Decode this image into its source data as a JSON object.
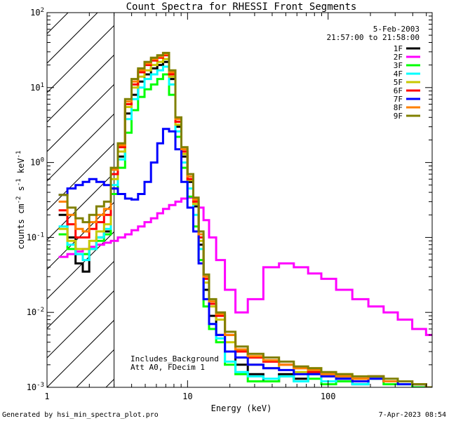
{
  "chart_data": {
    "type": "line",
    "title": "Count Spectra for RHESSI Front Segments",
    "xlabel": "Energy (keV)",
    "ylabel_parts": [
      "counts cm",
      "-2",
      " s",
      "-1",
      " keV",
      "-1"
    ],
    "xscale": "log",
    "yscale": "log",
    "xlim": [
      1,
      550
    ],
    "ylim": [
      0.001,
      100
    ],
    "x_ticks": [
      {
        "value": 1,
        "label": "1"
      },
      {
        "value": 10,
        "label": "10"
      },
      {
        "value": 100,
        "label": "100"
      }
    ],
    "y_ticks": [
      {
        "value": 0.001,
        "mant": "10",
        "exp": "-3"
      },
      {
        "value": 0.01,
        "mant": "10",
        "exp": "-2"
      },
      {
        "value": 0.1,
        "mant": "10",
        "exp": "-1"
      },
      {
        "value": 1,
        "mant": "10",
        "exp": "0"
      },
      {
        "value": 10,
        "mant": "10",
        "exp": "1"
      },
      {
        "value": 100,
        "mant": "10",
        "exp": "2"
      }
    ],
    "hatched_region_xmax": 3,
    "annotations": {
      "date": "5-Feb-2003",
      "time_range": "21:57:00 to 21:58:00",
      "background_note": "Includes_Background",
      "attenuator_note": "Att A0, FDecim 1"
    },
    "series": [
      {
        "name": "1F",
        "color": "#000000",
        "x": [
          1.3,
          1.5,
          1.7,
          1.9,
          2.1,
          2.4,
          2.7,
          3.0,
          3.4,
          3.8,
          4.2,
          4.7,
          5.2,
          5.8,
          6.4,
          7.0,
          7.8,
          8.6,
          9.5,
          10.5,
          11.5,
          12.5,
          13.5,
          15,
          17,
          20,
          24,
          30,
          40,
          50,
          65,
          80,
          100,
          130,
          170,
          220,
          280,
          350,
          450,
          550
        ],
        "y": [
          0.2,
          0.1,
          0.045,
          0.035,
          0.07,
          0.1,
          0.12,
          0.45,
          1.2,
          4.5,
          8,
          12,
          15,
          18,
          20,
          22,
          13,
          3,
          1.2,
          0.55,
          0.26,
          0.08,
          0.02,
          0.009,
          0.005,
          0.003,
          0.002,
          0.0015,
          0.0012,
          0.0015,
          0.0013,
          0.0016,
          0.0012,
          0.0013,
          0.0011,
          0.0014,
          0.0012,
          0.0012,
          0.0011,
          0.001
        ]
      },
      {
        "name": "2F",
        "color": "#ff00ff",
        "x": [
          1.3,
          1.5,
          1.7,
          1.9,
          2.1,
          2.4,
          2.7,
          3.0,
          3.4,
          3.8,
          4.2,
          4.7,
          5.2,
          5.8,
          6.4,
          7.0,
          7.8,
          8.6,
          9.5,
          10.5,
          11.5,
          12.5,
          13.5,
          15,
          17,
          20,
          24,
          30,
          40,
          50,
          65,
          80,
          100,
          130,
          170,
          220,
          280,
          350,
          450,
          550
        ],
        "y": [
          0.055,
          0.06,
          0.065,
          0.07,
          0.075,
          0.08,
          0.085,
          0.09,
          0.1,
          0.11,
          0.125,
          0.14,
          0.16,
          0.18,
          0.21,
          0.24,
          0.27,
          0.3,
          0.33,
          0.34,
          0.31,
          0.25,
          0.17,
          0.1,
          0.05,
          0.02,
          0.01,
          0.015,
          0.04,
          0.045,
          0.04,
          0.033,
          0.028,
          0.02,
          0.015,
          0.012,
          0.01,
          0.008,
          0.006,
          0.005
        ]
      },
      {
        "name": "3F",
        "color": "#00ff00",
        "x": [
          1.3,
          1.5,
          1.7,
          1.9,
          2.1,
          2.4,
          2.7,
          3.0,
          3.4,
          3.8,
          4.2,
          4.7,
          5.2,
          5.8,
          6.4,
          7.0,
          7.8,
          8.6,
          9.5,
          10.5,
          11.5,
          12.5,
          13.5,
          15,
          17,
          20,
          24,
          30,
          40,
          50,
          65,
          80,
          100,
          130,
          170,
          220,
          280,
          350,
          450,
          550
        ],
        "y": [
          0.11,
          0.07,
          0.06,
          0.06,
          0.07,
          0.09,
          0.11,
          0.38,
          0.85,
          2.5,
          5,
          7.5,
          9.5,
          11,
          13,
          15,
          8,
          2.2,
          0.85,
          0.35,
          0.14,
          0.05,
          0.012,
          0.006,
          0.004,
          0.002,
          0.0015,
          0.0012,
          0.0012,
          0.0014,
          0.0012,
          0.0013,
          0.0011,
          0.0012,
          0.0012,
          0.0013,
          0.0011,
          0.0011,
          0.001,
          0.001
        ]
      },
      {
        "name": "4F",
        "color": "#00ffff",
        "x": [
          1.3,
          1.5,
          1.7,
          1.9,
          2.1,
          2.4,
          2.7,
          3.0,
          3.4,
          3.8,
          4.2,
          4.7,
          5.2,
          5.8,
          6.4,
          7.0,
          7.8,
          8.6,
          9.5,
          10.5,
          11.5,
          12.5,
          13.5,
          15,
          17,
          20,
          24,
          30,
          40,
          50,
          65,
          80,
          100,
          130,
          170,
          220,
          280,
          350,
          450,
          550
        ],
        "y": [
          0.14,
          0.08,
          0.06,
          0.05,
          0.07,
          0.1,
          0.13,
          0.5,
          1.1,
          3.8,
          7,
          10,
          13,
          15,
          17,
          19,
          11,
          2.6,
          1,
          0.45,
          0.2,
          0.07,
          0.015,
          0.007,
          0.0045,
          0.0022,
          0.0016,
          0.0014,
          0.0013,
          0.0014,
          0.0012,
          0.0015,
          0.0012,
          0.0013,
          0.0011,
          0.0014,
          0.0012,
          0.0011,
          0.0011,
          0.001
        ]
      },
      {
        "name": "5F",
        "color": "#c8c800",
        "x": [
          1.3,
          1.5,
          1.7,
          1.9,
          2.1,
          2.4,
          2.7,
          3.0,
          3.4,
          3.8,
          4.2,
          4.7,
          5.2,
          5.8,
          6.4,
          7.0,
          7.8,
          8.6,
          9.5,
          10.5,
          11.5,
          12.5,
          13.5,
          15,
          17,
          20,
          24,
          30,
          40,
          50,
          65,
          80,
          100,
          130,
          170,
          220,
          280,
          350,
          450,
          550
        ],
        "y": [
          0.13,
          0.09,
          0.07,
          0.07,
          0.09,
          0.12,
          0.15,
          0.6,
          1.4,
          5.5,
          10,
          14,
          17,
          20,
          22,
          24,
          14,
          3.2,
          1.3,
          0.58,
          0.28,
          0.09,
          0.025,
          0.012,
          0.008,
          0.004,
          0.003,
          0.002,
          0.0018,
          0.002,
          0.0016,
          0.0018,
          0.0014,
          0.0015,
          0.0013,
          0.0014,
          0.0012,
          0.0012,
          0.0011,
          0.001
        ]
      },
      {
        "name": "6F",
        "color": "#ff0000",
        "x": [
          1.3,
          1.5,
          1.7,
          1.9,
          2.1,
          2.4,
          2.7,
          3.0,
          3.4,
          3.8,
          4.2,
          4.7,
          5.2,
          5.8,
          6.4,
          7.0,
          7.8,
          8.6,
          9.5,
          10.5,
          11.5,
          12.5,
          13.5,
          15,
          17,
          20,
          24,
          30,
          40,
          50,
          65,
          80,
          100,
          130,
          170,
          220,
          280,
          350,
          450,
          550
        ],
        "y": [
          0.23,
          0.15,
          0.1,
          0.1,
          0.13,
          0.16,
          0.2,
          0.7,
          1.6,
          6,
          11,
          16,
          20,
          23,
          25,
          27,
          15,
          3.5,
          1.4,
          0.6,
          0.3,
          0.1,
          0.028,
          0.013,
          0.009,
          0.005,
          0.003,
          0.0025,
          0.0022,
          0.002,
          0.0018,
          0.0016,
          0.0015,
          0.0014,
          0.0013,
          0.0014,
          0.0012,
          0.0012,
          0.0011,
          0.001
        ]
      },
      {
        "name": "7F",
        "color": "#0000ff",
        "x": [
          1.3,
          1.5,
          1.7,
          1.9,
          2.1,
          2.4,
          2.7,
          3.0,
          3.4,
          3.8,
          4.2,
          4.7,
          5.2,
          5.8,
          6.4,
          7.0,
          7.8,
          8.6,
          9.5,
          10.5,
          11.5,
          12.5,
          13.5,
          15,
          17,
          20,
          24,
          30,
          40,
          50,
          65,
          80,
          100,
          130,
          170,
          220,
          280,
          350,
          450,
          550
        ],
        "y": [
          0.37,
          0.45,
          0.5,
          0.55,
          0.6,
          0.55,
          0.5,
          0.45,
          0.38,
          0.33,
          0.32,
          0.38,
          0.55,
          1,
          1.8,
          2.8,
          2.6,
          1.5,
          0.55,
          0.25,
          0.12,
          0.045,
          0.015,
          0.007,
          0.005,
          0.003,
          0.0025,
          0.002,
          0.0018,
          0.0017,
          0.0015,
          0.0015,
          0.0014,
          0.0013,
          0.0012,
          0.0013,
          0.0012,
          0.0011,
          0.0011,
          0.001
        ]
      },
      {
        "name": "8F",
        "color": "#ff8000",
        "x": [
          1.3,
          1.5,
          1.7,
          1.9,
          2.1,
          2.4,
          2.7,
          3.0,
          3.4,
          3.8,
          4.2,
          4.7,
          5.2,
          5.8,
          6.4,
          7.0,
          7.8,
          8.6,
          9.5,
          10.5,
          11.5,
          12.5,
          13.5,
          15,
          17,
          20,
          24,
          30,
          40,
          50,
          65,
          80,
          100,
          130,
          170,
          220,
          280,
          350,
          450,
          550
        ],
        "y": [
          0.3,
          0.2,
          0.13,
          0.12,
          0.16,
          0.2,
          0.24,
          0.8,
          1.7,
          6.5,
          12,
          17,
          21,
          24,
          26,
          28,
          16,
          3.8,
          1.5,
          0.65,
          0.32,
          0.11,
          0.03,
          0.014,
          0.0095,
          0.005,
          0.0032,
          0.0026,
          0.0023,
          0.002,
          0.0018,
          0.0017,
          0.0015,
          0.0014,
          0.0013,
          0.0014,
          0.0012,
          0.0012,
          0.0011,
          0.001
        ]
      },
      {
        "name": "9F",
        "color": "#808000",
        "x": [
          1.3,
          1.5,
          1.7,
          1.9,
          2.1,
          2.4,
          2.7,
          3.0,
          3.4,
          3.8,
          4.2,
          4.7,
          5.2,
          5.8,
          6.4,
          7.0,
          7.8,
          8.6,
          9.5,
          10.5,
          11.5,
          12.5,
          13.5,
          15,
          17,
          20,
          24,
          30,
          40,
          50,
          65,
          80,
          100,
          130,
          170,
          220,
          280,
          350,
          450,
          550
        ],
        "y": [
          0.37,
          0.25,
          0.18,
          0.16,
          0.2,
          0.26,
          0.3,
          0.85,
          1.8,
          7,
          13,
          18,
          22,
          25,
          27,
          29,
          17,
          4,
          1.6,
          0.7,
          0.34,
          0.12,
          0.032,
          0.015,
          0.01,
          0.0055,
          0.0035,
          0.0028,
          0.0025,
          0.0022,
          0.0019,
          0.0018,
          0.0016,
          0.0015,
          0.0014,
          0.0014,
          0.0013,
          0.0012,
          0.0011,
          0.001
        ]
      }
    ]
  },
  "footer": {
    "generated_by": "Generated by hsi_min_spectra_plot.pro",
    "timestamp": "7-Apr-2023 08:54"
  }
}
